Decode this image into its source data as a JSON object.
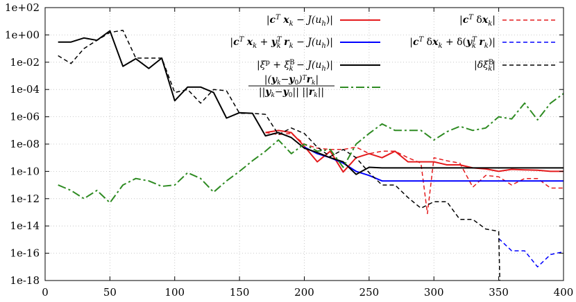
{
  "chart_data": {
    "type": "line",
    "title": "",
    "xlabel": "",
    "ylabel": "",
    "xlim": [
      0,
      400
    ],
    "ylim_log10": [
      -18,
      2
    ],
    "y_scale": "log",
    "grid": true,
    "legend_placement": "top-right",
    "x_tick_labels": [
      "0",
      "50",
      "100",
      "150",
      "200",
      "250",
      "300",
      "350",
      "400"
    ],
    "y_tick_labels": [
      "1e+02",
      "1e+00",
      "1e-02",
      "1e-04",
      "1e-06",
      "1e-08",
      "1e-10",
      "1e-12",
      "1e-14",
      "1e-16",
      "1e-18"
    ],
    "series": [
      {
        "name": "|c^T x_k − J(u_h)|",
        "color": "#e41a1c",
        "dash": "solid",
        "points": [
          [
            170,
            7e-08
          ],
          [
            180,
            1e-07
          ],
          [
            190,
            7e-08
          ],
          [
            200,
            7e-09
          ],
          [
            210,
            5e-10
          ],
          [
            220,
            3e-09
          ],
          [
            230,
            9e-11
          ],
          [
            240,
            1e-09
          ],
          [
            250,
            2e-09
          ],
          [
            260,
            1e-09
          ],
          [
            270,
            3e-09
          ],
          [
            280,
            5e-10
          ],
          [
            290,
            5e-10
          ],
          [
            300,
            5e-10
          ],
          [
            310,
            3e-10
          ],
          [
            320,
            3e-10
          ],
          [
            330,
            1.8e-10
          ],
          [
            340,
            1.5e-10
          ],
          [
            350,
            1e-10
          ],
          [
            360,
            1.4e-10
          ],
          [
            370,
            1.3e-10
          ],
          [
            380,
            1.2e-10
          ],
          [
            390,
            1e-10
          ],
          [
            400,
            1e-10
          ]
        ]
      },
      {
        "name": "|c^T δx_k|",
        "color": "#e41a1c",
        "dash": "dashed",
        "points": [
          [
            170,
            7e-08
          ],
          [
            180,
            5e-08
          ],
          [
            190,
            6e-08
          ],
          [
            200,
            1e-08
          ],
          [
            210,
            5e-09
          ],
          [
            220,
            4e-09
          ],
          [
            230,
            4e-09
          ],
          [
            240,
            6e-09
          ],
          [
            250,
            2e-09
          ],
          [
            260,
            3e-09
          ],
          [
            270,
            3e-09
          ],
          [
            280,
            1e-09
          ],
          [
            290,
            4e-10
          ],
          [
            295,
            8e-14
          ],
          [
            300,
            1e-09
          ],
          [
            310,
            6e-10
          ],
          [
            320,
            4e-10
          ],
          [
            330,
            7e-12
          ],
          [
            340,
            5e-11
          ],
          [
            350,
            4e-11
          ],
          [
            360,
            1e-11
          ],
          [
            370,
            3e-11
          ],
          [
            380,
            3e-11
          ],
          [
            390,
            6e-12
          ],
          [
            400,
            6e-12
          ]
        ]
      },
      {
        "name": "|c^T x_k + y_k^T r_k − J(u_h)|",
        "color": "#0000ff",
        "dash": "solid",
        "points": [
          [
            200,
            6e-09
          ],
          [
            210,
            2e-09
          ],
          [
            220,
            1e-09
          ],
          [
            230,
            4e-10
          ],
          [
            240,
            1e-10
          ],
          [
            250,
            5e-11
          ],
          [
            260,
            2e-11
          ],
          [
            270,
            2e-11
          ],
          [
            280,
            2e-11
          ],
          [
            290,
            2e-11
          ],
          [
            300,
            2e-11
          ],
          [
            310,
            2e-11
          ],
          [
            320,
            2e-11
          ],
          [
            330,
            2e-11
          ],
          [
            340,
            2e-11
          ],
          [
            350,
            2e-11
          ],
          [
            360,
            2e-11
          ],
          [
            370,
            2e-11
          ],
          [
            380,
            2e-11
          ],
          [
            390,
            2e-11
          ],
          [
            400,
            2e-11
          ]
        ]
      },
      {
        "name": "|c^T δx_k + δ(y_k^T r_k)|",
        "color": "#0000ff",
        "dash": "dashed",
        "points": [
          [
            350,
            1.2e-15
          ],
          [
            360,
            1.5e-16
          ],
          [
            370,
            1.5e-16
          ],
          [
            380,
            1e-17
          ],
          [
            390,
            8e-17
          ],
          [
            400,
            1.3e-16
          ]
        ]
      },
      {
        "name": "|ξ^p + ξ_k^B − J(u_h)|",
        "color": "#000000",
        "dash": "solid",
        "points": [
          [
            10,
            0.3
          ],
          [
            20,
            0.3
          ],
          [
            30,
            0.6
          ],
          [
            40,
            0.4
          ],
          [
            50,
            2.0
          ],
          [
            60,
            0.005
          ],
          [
            70,
            0.018
          ],
          [
            80,
            0.0035
          ],
          [
            90,
            0.02
          ],
          [
            100,
            1.5e-05
          ],
          [
            110,
            0.00015
          ],
          [
            120,
            0.00015
          ],
          [
            130,
            6e-05
          ],
          [
            140,
            8e-07
          ],
          [
            150,
            2e-06
          ],
          [
            160,
            1.8e-06
          ],
          [
            170,
            4e-08
          ],
          [
            180,
            7e-08
          ],
          [
            190,
            3e-08
          ],
          [
            200,
            5e-09
          ],
          [
            210,
            2.4e-09
          ],
          [
            220,
            1e-09
          ],
          [
            230,
            5e-10
          ],
          [
            240,
            6e-11
          ],
          [
            250,
            2e-10
          ],
          [
            260,
            1.8e-10
          ],
          [
            270,
            1.8e-10
          ],
          [
            280,
            1.8e-10
          ],
          [
            290,
            1.8e-10
          ],
          [
            300,
            1.8e-10
          ],
          [
            310,
            1.8e-10
          ],
          [
            320,
            1.8e-10
          ],
          [
            330,
            1.8e-10
          ],
          [
            340,
            1.8e-10
          ],
          [
            350,
            1.8e-10
          ],
          [
            360,
            1.8e-10
          ],
          [
            370,
            1.8e-10
          ],
          [
            380,
            1.8e-10
          ],
          [
            390,
            1.8e-10
          ],
          [
            400,
            1.8e-10
          ]
        ]
      },
      {
        "name": "|δξ_k^B|",
        "color": "#000000",
        "dash": "dashed",
        "points": [
          [
            10,
            0.03
          ],
          [
            20,
            0.008
          ],
          [
            30,
            0.1
          ],
          [
            40,
            0.4
          ],
          [
            50,
            1.5
          ],
          [
            60,
            2.2
          ],
          [
            70,
            0.02
          ],
          [
            80,
            0.02
          ],
          [
            90,
            0.02
          ],
          [
            100,
            6e-05
          ],
          [
            110,
            0.0001
          ],
          [
            120,
            1e-05
          ],
          [
            130,
            0.0001
          ],
          [
            140,
            8e-05
          ],
          [
            150,
            1.8e-06
          ],
          [
            160,
            1.8e-06
          ],
          [
            170,
            1.5e-06
          ],
          [
            180,
            5e-08
          ],
          [
            190,
            1.5e-07
          ],
          [
            200,
            6e-08
          ],
          [
            210,
            6e-09
          ],
          [
            220,
            1.2e-09
          ],
          [
            230,
            4e-09
          ],
          [
            240,
            1e-09
          ],
          [
            250,
            8e-11
          ],
          [
            260,
            1e-11
          ],
          [
            270,
            1e-11
          ],
          [
            280,
            1.2e-12
          ],
          [
            290,
            2e-13
          ],
          [
            300,
            6e-13
          ],
          [
            310,
            6e-13
          ],
          [
            320,
            3e-14
          ],
          [
            330,
            3e-14
          ],
          [
            340,
            6e-15
          ],
          [
            350,
            4e-15
          ],
          [
            351,
            1e-19
          ]
        ]
      },
      {
        "name": "|(y_k − y_0)^T r_k| / (||y_k − y_0|| ||r_k||)",
        "color": "#2e8b22",
        "dash": "dashdot",
        "points": [
          [
            10,
            1e-11
          ],
          [
            20,
            4e-12
          ],
          [
            30,
            1e-12
          ],
          [
            40,
            4e-12
          ],
          [
            50,
            5e-13
          ],
          [
            60,
            1e-11
          ],
          [
            70,
            3e-11
          ],
          [
            80,
            2e-11
          ],
          [
            90,
            8e-12
          ],
          [
            100,
            1e-11
          ],
          [
            110,
            8e-11
          ],
          [
            120,
            3e-11
          ],
          [
            130,
            3e-12
          ],
          [
            140,
            2e-11
          ],
          [
            150,
            1e-10
          ],
          [
            160,
            6e-10
          ],
          [
            170,
            3e-09
          ],
          [
            180,
            2e-08
          ],
          [
            190,
            2e-09
          ],
          [
            200,
            1e-08
          ],
          [
            210,
            3e-09
          ],
          [
            220,
            4e-09
          ],
          [
            230,
            2e-10
          ],
          [
            240,
            1e-08
          ],
          [
            250,
            6e-08
          ],
          [
            260,
            3e-07
          ],
          [
            270,
            1e-07
          ],
          [
            280,
            1e-07
          ],
          [
            290,
            1e-07
          ],
          [
            300,
            2e-08
          ],
          [
            310,
            8e-08
          ],
          [
            320,
            2e-07
          ],
          [
            330,
            1e-07
          ],
          [
            340,
            1.5e-07
          ],
          [
            350,
            1e-06
          ],
          [
            360,
            7e-07
          ],
          [
            370,
            1e-05
          ],
          [
            380,
            6e-07
          ],
          [
            390,
            1e-05
          ],
          [
            400,
            5e-05
          ]
        ]
      }
    ]
  }
}
